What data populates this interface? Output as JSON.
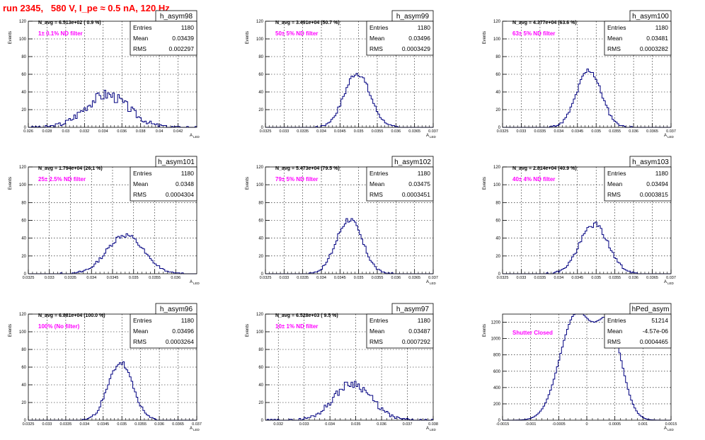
{
  "page_title": "run 2345,   580 V, I_pe ≈ 0.5 nA, 120 Hz",
  "colors": {
    "hist": "#000080",
    "note": "#ff00ff",
    "title": "#ff0000"
  },
  "stat_labels": [
    "Entries",
    "Mean",
    "RMS"
  ],
  "y_axis_label": "Events",
  "x_axis_label": "A",
  "x_axis_sub": "LED",
  "chart_data": [
    {
      "type": "bar",
      "name": "h_asym98",
      "navg": "N_avg = 6.513e+02 ( 0.9 %)",
      "note": "1± 0.1% ND filter",
      "stats": {
        "entries": "1180",
        "mean": "0.03439",
        "rms": "0.002297"
      },
      "xlim": [
        0.026,
        0.044
      ],
      "xticks": [
        "0.026",
        "0.028",
        "0.03",
        "0.032",
        "0.034",
        "0.036",
        "0.038",
        "0.04",
        "0.042"
      ],
      "ylim": [
        0,
        120
      ],
      "yticks": [
        "0",
        "20",
        "40",
        "60",
        "80",
        "100",
        "120"
      ],
      "dist": {
        "mean": 0.03439,
        "rms": 0.002297,
        "count": 1180,
        "nbins": 100,
        "noise": 0.35,
        "seed": 3
      }
    },
    {
      "type": "bar",
      "name": "h_asym99",
      "navg": "N_avg = 3.491e+04 (50.7 %)",
      "note": "50± 5% ND filter",
      "stats": {
        "entries": "1180",
        "mean": "0.03496",
        "rms": "0.0003429"
      },
      "xlim": [
        0.0325,
        0.037
      ],
      "xticks": [
        "0.0325",
        "0.033",
        "0.0335",
        "0.034",
        "0.0345",
        "0.035",
        "0.0355",
        "0.036",
        "0.0365",
        "0.037"
      ],
      "ylim": [
        0,
        120
      ],
      "yticks": [
        "0",
        "20",
        "40",
        "60",
        "80",
        "100",
        "120"
      ],
      "dist": {
        "mean": 0.03496,
        "rms": 0.0003429,
        "count": 1180,
        "nbins": 100,
        "noise": 0.15,
        "seed": 7
      }
    },
    {
      "type": "bar",
      "name": "h_asym100",
      "navg": "N_avg = 4.377e+04 (63.6 %)",
      "note": "63± 5% ND filter",
      "stats": {
        "entries": "1180",
        "mean": "0.03481",
        "rms": "0.0003282"
      },
      "xlim": [
        0.0325,
        0.037
      ],
      "xticks": [
        "0.0325",
        "0.033",
        "0.0335",
        "0.034",
        "0.0345",
        "0.035",
        "0.0355",
        "0.036",
        "0.0365",
        "0.037"
      ],
      "ylim": [
        0,
        120
      ],
      "yticks": [
        "0",
        "20",
        "40",
        "60",
        "80",
        "100",
        "120"
      ],
      "dist": {
        "mean": 0.03481,
        "rms": 0.0003282,
        "count": 1180,
        "nbins": 100,
        "noise": 0.15,
        "seed": 11
      }
    },
    {
      "type": "bar",
      "name": "h_asym101",
      "navg": "N_avg = 1.794e+04 (26.1 %)",
      "note": "25± 2.5% ND filter",
      "stats": {
        "entries": "1180",
        "mean": "0.0348",
        "rms": "0.0004304"
      },
      "xlim": [
        0.0325,
        0.0365
      ],
      "xticks": [
        "0.0325",
        "0.033",
        "0.0335",
        "0.034",
        "0.0345",
        "0.035",
        "0.0355",
        "0.036"
      ],
      "ylim": [
        0,
        120
      ],
      "yticks": [
        "0",
        "20",
        "40",
        "60",
        "80",
        "100",
        "120"
      ],
      "dist": {
        "mean": 0.0348,
        "rms": 0.0004304,
        "count": 1180,
        "nbins": 100,
        "noise": 0.15,
        "seed": 13
      }
    },
    {
      "type": "bar",
      "name": "h_asym102",
      "navg": "N_avg = 5.473e+04 (79.5 %)",
      "note": "79± 5% ND filter",
      "stats": {
        "entries": "1180",
        "mean": "0.03475",
        "rms": "0.0003451"
      },
      "xlim": [
        0.0325,
        0.037
      ],
      "xticks": [
        "0.0325",
        "0.033",
        "0.0335",
        "0.034",
        "0.0345",
        "0.035",
        "0.0355",
        "0.036",
        "0.0365",
        "0.037"
      ],
      "ylim": [
        0,
        120
      ],
      "yticks": [
        "0",
        "20",
        "40",
        "60",
        "80",
        "100",
        "120"
      ],
      "dist": {
        "mean": 0.03475,
        "rms": 0.0003451,
        "count": 1180,
        "nbins": 100,
        "noise": 0.15,
        "seed": 17
      }
    },
    {
      "type": "bar",
      "name": "h_asym103",
      "navg": "N_avg = 2.814e+04 (40.9 %)",
      "note": "40± 4% ND filter",
      "stats": {
        "entries": "1180",
        "mean": "0.03494",
        "rms": "0.0003815"
      },
      "xlim": [
        0.0325,
        0.037
      ],
      "xticks": [
        "0.0325",
        "0.033",
        "0.0335",
        "0.034",
        "0.0345",
        "0.035",
        "0.0355",
        "0.036",
        "0.0365",
        "0.037"
      ],
      "ylim": [
        0,
        120
      ],
      "yticks": [
        "0",
        "20",
        "40",
        "60",
        "80",
        "100",
        "120"
      ],
      "dist": {
        "mean": 0.03494,
        "rms": 0.0003815,
        "count": 1180,
        "nbins": 100,
        "noise": 0.15,
        "seed": 19
      }
    },
    {
      "type": "bar",
      "name": "h_asym96",
      "navg": "N_avg = 6.881e+04 (100.0 %)",
      "note": "100% (No filter)",
      "stats": {
        "entries": "1180",
        "mean": "0.03496",
        "rms": "0.0003264"
      },
      "xlim": [
        0.0325,
        0.037
      ],
      "xticks": [
        "0.0325",
        "0.033",
        "0.0335",
        "0.034",
        "0.0345",
        "0.035",
        "0.0355",
        "0.036",
        "0.0365",
        "0.037"
      ],
      "ylim": [
        0,
        120
      ],
      "yticks": [
        "0",
        "20",
        "40",
        "60",
        "80",
        "100",
        "120"
      ],
      "dist": {
        "mean": 0.03496,
        "rms": 0.0003264,
        "count": 1180,
        "nbins": 100,
        "noise": 0.15,
        "seed": 23
      }
    },
    {
      "type": "bar",
      "name": "h_asym97",
      "navg": "N_avg = 6.528e+03 ( 9.5 %)",
      "note": "10± 1% ND filter",
      "stats": {
        "entries": "1180",
        "mean": "0.03487",
        "rms": "0.0007292"
      },
      "xlim": [
        0.0315,
        0.038
      ],
      "xticks": [
        "0.032",
        "0.033",
        "0.034",
        "0.035",
        "0.036",
        "0.037",
        "0.038"
      ],
      "ylim": [
        0,
        120
      ],
      "yticks": [
        "0",
        "20",
        "40",
        "60",
        "80",
        "100",
        "120"
      ],
      "dist": {
        "mean": 0.03487,
        "rms": 0.0007292,
        "count": 1180,
        "nbins": 100,
        "noise": 0.25,
        "seed": 29
      }
    },
    {
      "type": "bar",
      "name": "hPed_asym",
      "navg": "",
      "note": "Shutter Closed",
      "stats": {
        "entries": "51214",
        "mean": "-4.57e-06",
        "rms": "0.0004465"
      },
      "xlim": [
        -0.0015,
        0.0015
      ],
      "xticks": [
        "-0.0015",
        "-0.001",
        "-0.0005",
        "0",
        "0.0005",
        "0.001",
        "0.0015"
      ],
      "ylim": [
        0,
        1300
      ],
      "yticks": [
        "0",
        "200",
        "400",
        "600",
        "800",
        "1000",
        "1200"
      ],
      "dist": {
        "bimodal": true,
        "mean": -4.6e-06,
        "rms": 0.0004465,
        "count": 51214,
        "nbins": 100,
        "noise": 0.04,
        "seed": 31
      }
    }
  ]
}
